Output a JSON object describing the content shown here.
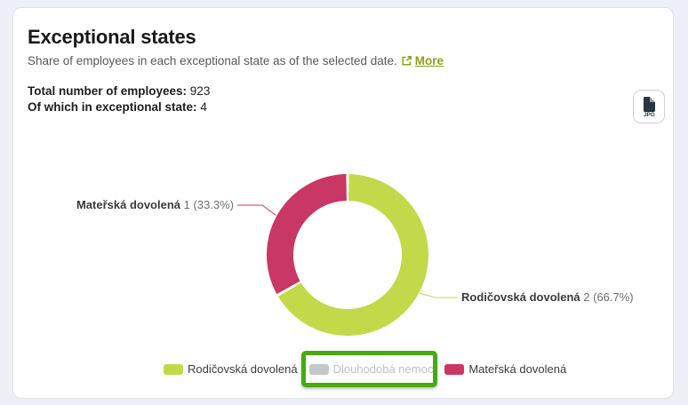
{
  "card": {
    "title": "Exceptional states",
    "subtitle": "Share of employees in each exceptional state as of the selected date.",
    "more_label": "More",
    "stats": [
      {
        "label": "Total number of employees:",
        "value": "923"
      },
      {
        "label": "Of which in exceptional state:",
        "value": "4"
      }
    ],
    "export_button": {
      "format_label": "JPG"
    }
  },
  "icons": {
    "more": "external-link-icon",
    "export": "jpg-file-icon"
  },
  "colors": {
    "link_green": "#8fa019",
    "lime": "#c3d94a",
    "pink": "#c93764",
    "disabled_gray": "#c3c8cd",
    "highlight_green": "#45aa14"
  },
  "annotation": {
    "type": "highlight-box",
    "target_label": "Dlouhodobá nemoc",
    "color": "#45aa14"
  },
  "chart_data": {
    "type": "pie",
    "subtype": "donut",
    "title": "Exceptional states",
    "total_in_exceptional_state": 4,
    "total_employees": 923,
    "direction": "clockwise",
    "start_angle_deg": 0,
    "legend_position": "bottom",
    "slices": [
      {
        "label": "Rodičovská dovolená",
        "value": 2,
        "pct": 66.7,
        "display": "2 (66.7%)",
        "color": "#c3d94a",
        "label_side": "right"
      },
      {
        "label": "Mateřská dovolená",
        "value": 1,
        "pct": 33.3,
        "display": "1 (33.3%)",
        "color": "#c93764",
        "label_side": "left"
      }
    ],
    "legend": [
      {
        "label": "Rodičovská dovolená",
        "color": "#c3d94a",
        "disabled": false,
        "highlighted": false
      },
      {
        "label": "Dlouhodobá nemoc",
        "color": "#c3c8cd",
        "disabled": true,
        "highlighted": true
      },
      {
        "label": "Mateřská dovolená",
        "color": "#c93764",
        "disabled": false,
        "highlighted": false
      }
    ]
  }
}
